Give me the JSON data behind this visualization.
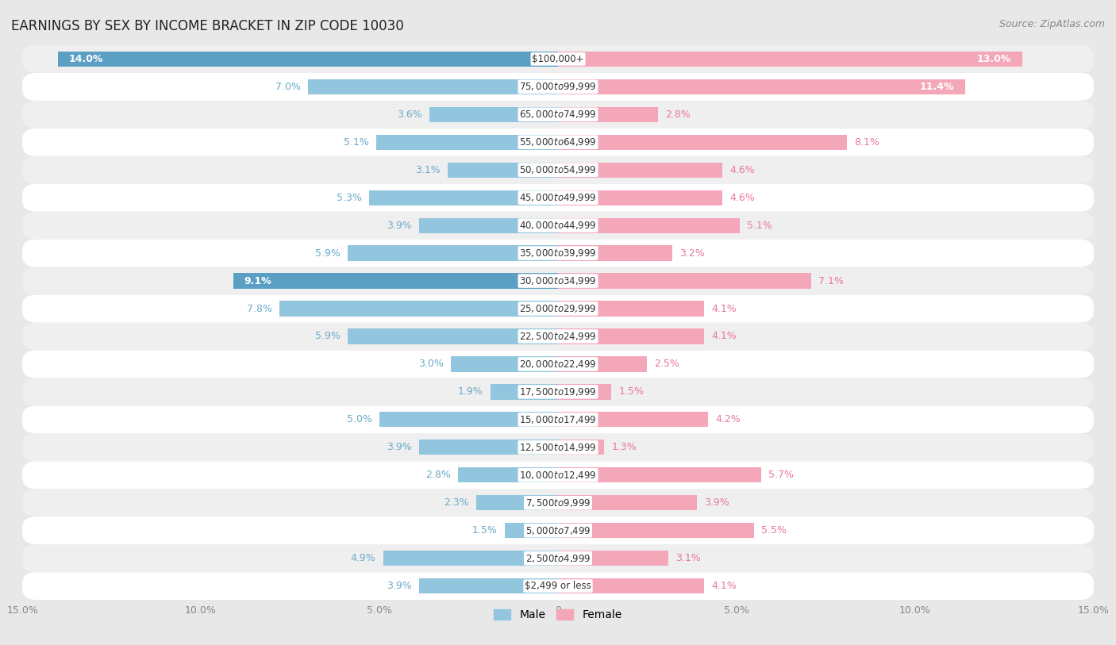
{
  "title": "EARNINGS BY SEX BY INCOME BRACKET IN ZIP CODE 10030",
  "source": "Source: ZipAtlas.com",
  "categories": [
    "$2,499 or less",
    "$2,500 to $4,999",
    "$5,000 to $7,499",
    "$7,500 to $9,999",
    "$10,000 to $12,499",
    "$12,500 to $14,999",
    "$15,000 to $17,499",
    "$17,500 to $19,999",
    "$20,000 to $22,499",
    "$22,500 to $24,999",
    "$25,000 to $29,999",
    "$30,000 to $34,999",
    "$35,000 to $39,999",
    "$40,000 to $44,999",
    "$45,000 to $49,999",
    "$50,000 to $54,999",
    "$55,000 to $64,999",
    "$65,000 to $74,999",
    "$75,000 to $99,999",
    "$100,000+"
  ],
  "male": [
    3.9,
    4.9,
    1.5,
    2.3,
    2.8,
    3.9,
    5.0,
    1.9,
    3.0,
    5.9,
    7.8,
    9.1,
    5.9,
    3.9,
    5.3,
    3.1,
    5.1,
    3.6,
    7.0,
    14.0
  ],
  "female": [
    4.1,
    3.1,
    5.5,
    3.9,
    5.7,
    1.3,
    4.2,
    1.5,
    2.5,
    4.1,
    4.1,
    7.1,
    3.2,
    5.1,
    4.6,
    4.6,
    8.1,
    2.8,
    11.4,
    13.0
  ],
  "male_color": "#92c5de",
  "female_color": "#f4a7b9",
  "male_label_color": "#6aaac8",
  "female_label_color": "#e8789a",
  "highlight_male_color": "#5b9fc4",
  "highlight_female_color": "#f07090",
  "bg_color": "#e8e8e8",
  "row_white_color": "#ffffff",
  "row_gray_color": "#efefef",
  "xlim": 15.0,
  "bar_height": 0.55,
  "title_fontsize": 12,
  "label_fontsize": 9,
  "source_fontsize": 9,
  "cat_fontsize": 8.5,
  "tick_fontsize": 9,
  "legend_fontsize": 10
}
